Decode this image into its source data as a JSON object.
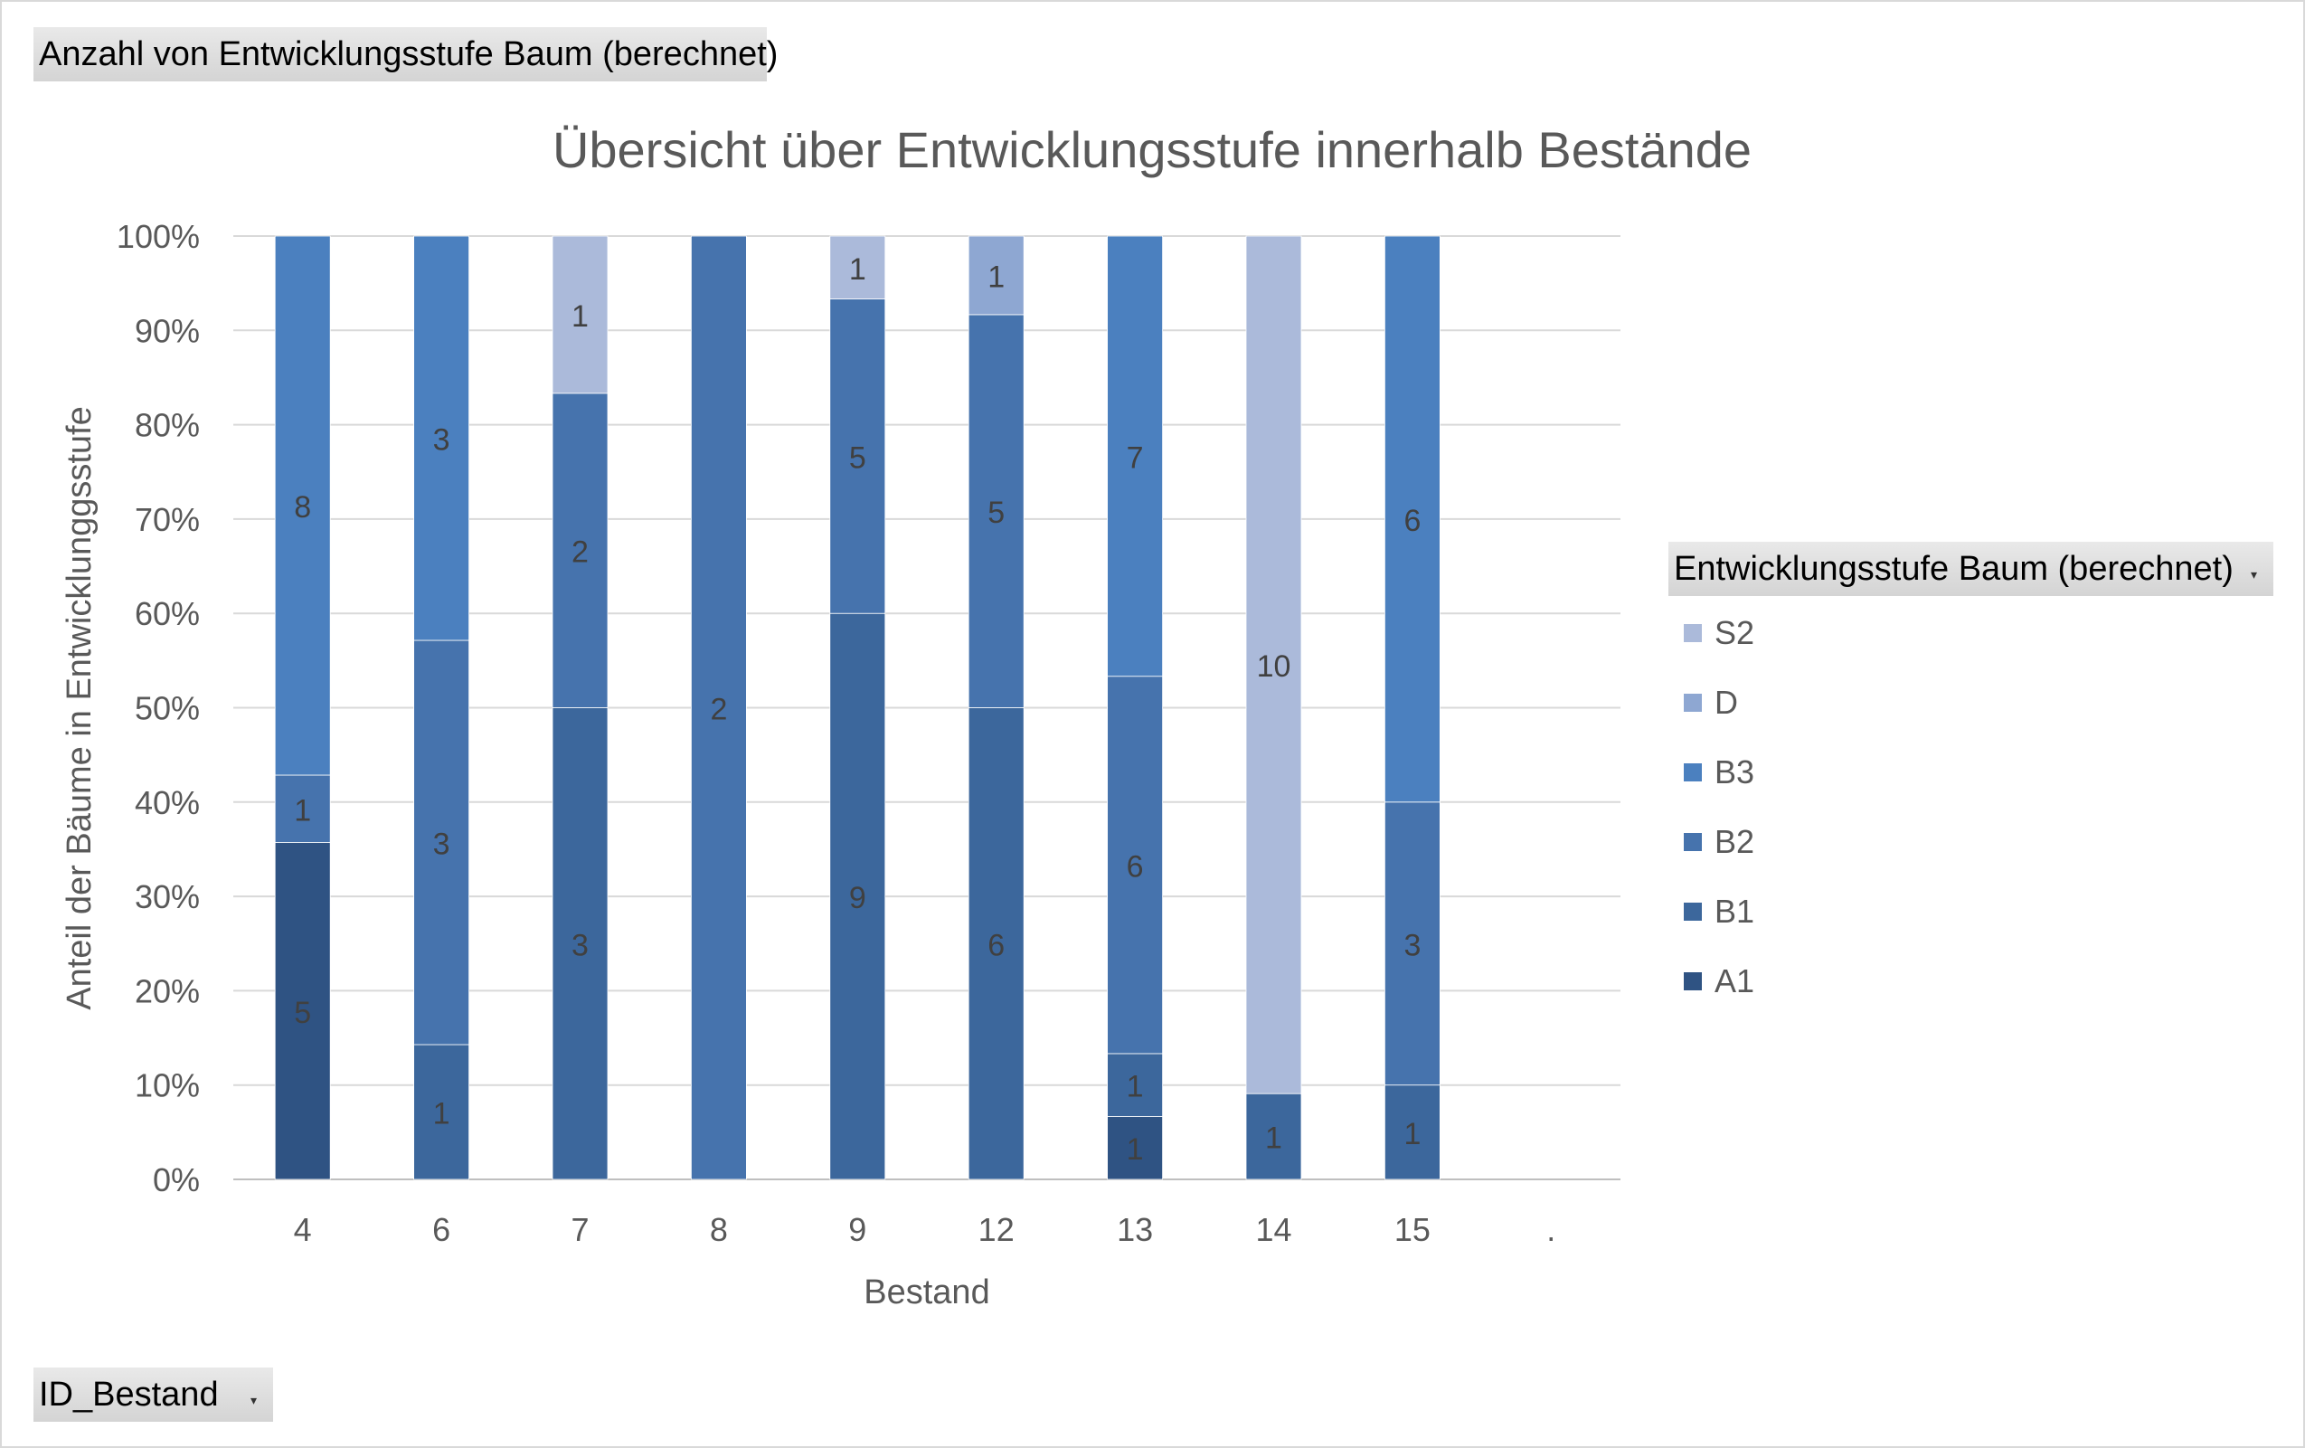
{
  "pivot": {
    "value_field_button": "Anzahl von Entwicklungsstufe Baum (berechnet)",
    "axis_field_button": "ID_Bestand",
    "legend_field_button": "Entwicklungsstufe Baum (berechnet)"
  },
  "chart_data": {
    "type": "bar",
    "stacked": "percent",
    "title": "Übersicht über Entwicklungsstufe innerhalb Bestände",
    "xlabel": "Bestand",
    "ylabel": "Anteil der Bäume in Entwicklunggsstufe",
    "categories": [
      "4",
      "6",
      "7",
      "8",
      "9",
      "12",
      "13",
      "14",
      "15",
      "."
    ],
    "y_ticks": [
      "0%",
      "10%",
      "20%",
      "30%",
      "40%",
      "50%",
      "60%",
      "70%",
      "80%",
      "90%",
      "100%"
    ],
    "ylim": [
      0,
      100
    ],
    "grid": true,
    "legend_position": "right",
    "series": [
      {
        "name": "A1",
        "color": "#2f5383",
        "values": [
          5,
          0,
          0,
          0,
          0,
          0,
          1,
          0,
          0,
          0
        ]
      },
      {
        "name": "B1",
        "color": "#3c679c",
        "values": [
          0,
          1,
          3,
          0,
          9,
          6,
          1,
          1,
          1,
          0
        ]
      },
      {
        "name": "B2",
        "color": "#4673ad",
        "values": [
          1,
          3,
          2,
          2,
          5,
          5,
          6,
          0,
          3,
          0
        ]
      },
      {
        "name": "B3",
        "color": "#4b80bf",
        "values": [
          8,
          3,
          0,
          0,
          0,
          0,
          7,
          0,
          6,
          0
        ]
      },
      {
        "name": "D",
        "color": "#8ea7d2",
        "values": [
          0,
          0,
          0,
          0,
          0,
          1,
          0,
          0,
          0,
          0
        ]
      },
      {
        "name": "S2",
        "color": "#abbada",
        "values": [
          0,
          0,
          1,
          0,
          1,
          0,
          0,
          10,
          0,
          0
        ]
      }
    ],
    "legend_order": [
      "S2",
      "D",
      "B3",
      "B2",
      "B1",
      "A1"
    ]
  }
}
